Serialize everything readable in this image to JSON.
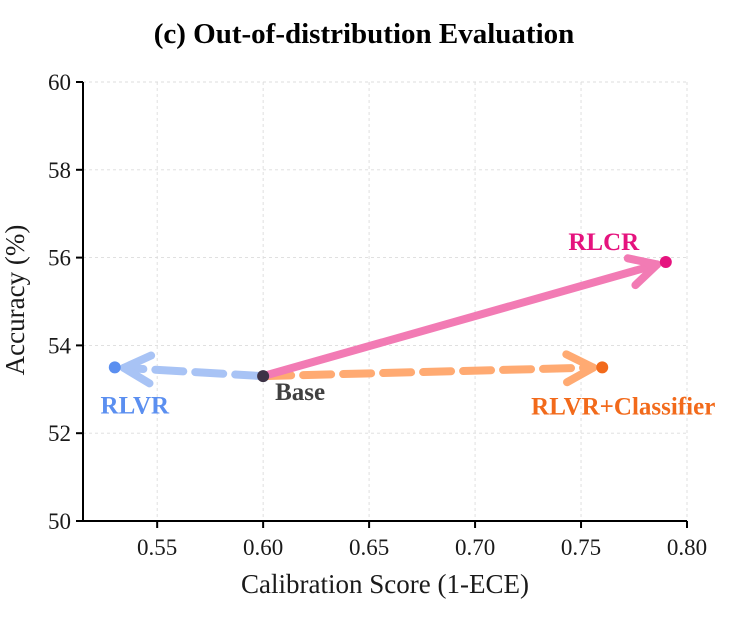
{
  "chart_data": {
    "type": "scatter",
    "title": "(c) Out-of-distribution Evaluation",
    "xlabel": "Calibration Score (1-ECE)",
    "ylabel": "Accuracy (%)",
    "xlim": [
      0.515,
      0.8
    ],
    "ylim": [
      50,
      60
    ],
    "xticks": [
      0.55,
      0.6,
      0.65,
      0.7,
      0.75,
      0.8
    ],
    "xtick_labels": [
      "0.55",
      "0.60",
      "0.65",
      "0.70",
      "0.75",
      "0.80"
    ],
    "yticks": [
      50,
      52,
      54,
      56,
      58,
      60
    ],
    "ytick_labels": [
      "50",
      "52",
      "54",
      "56",
      "58",
      "60"
    ],
    "grid": true,
    "points": [
      {
        "label": "Base",
        "x": 0.6,
        "y": 53.3,
        "color": "#3d3246",
        "label_color": "#404040"
      },
      {
        "label": "RLVR",
        "x": 0.53,
        "y": 53.5,
        "color": "#5b8ff0",
        "label_color": "#5b8ff0"
      },
      {
        "label": "RLVR+Classifier",
        "x": 0.76,
        "y": 53.5,
        "color": "#f26a1b",
        "label_color": "#f26a1b"
      },
      {
        "label": "RLCR",
        "x": 0.79,
        "y": 55.9,
        "color": "#e5137e",
        "label_color": "#e5137e"
      }
    ],
    "arrows": [
      {
        "from": "Base",
        "to": "RLVR",
        "style": "dashed",
        "color": "#a8c3f5"
      },
      {
        "from": "Base",
        "to": "RLVR+Classifier",
        "style": "dashed",
        "color": "#ffaa72"
      },
      {
        "from": "Base",
        "to": "RLCR",
        "style": "solid",
        "color": "#f27bb4"
      }
    ]
  }
}
